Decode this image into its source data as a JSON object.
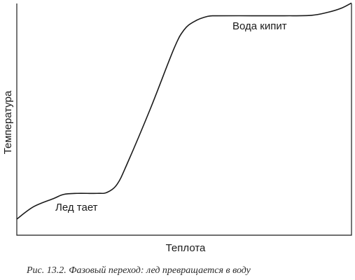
{
  "chart_data": {
    "type": "line",
    "title": "",
    "xlabel": "Теплота",
    "ylabel": "Температура",
    "x_ticks": [],
    "y_ticks": [],
    "grid": false,
    "xlim": [
      0,
      100
    ],
    "ylim": [
      0,
      100
    ],
    "series": [
      {
        "x": [
          0,
          5,
          11,
          14,
          18,
          24,
          27,
          30,
          33,
          40,
          47,
          50,
          53,
          57,
          60,
          70,
          80,
          88,
          93,
          97,
          100
        ],
        "y": [
          0,
          6,
          10,
          12,
          12.5,
          12.5,
          13,
          17,
          27,
          54,
          83,
          92,
          96,
          98.5,
          98.8,
          98.8,
          98.8,
          99,
          100.5,
          102.5,
          105
        ]
      }
    ],
    "annotations": [
      {
        "text": "Лед тает"
      },
      {
        "text": "Вода кипит"
      }
    ]
  },
  "caption": "Рис. 13.2. Фазовый переход: лед превращается в воду",
  "colors": {
    "line": "#1a1a1a",
    "axes": "#1a1a1a",
    "background": "#ffffff"
  }
}
